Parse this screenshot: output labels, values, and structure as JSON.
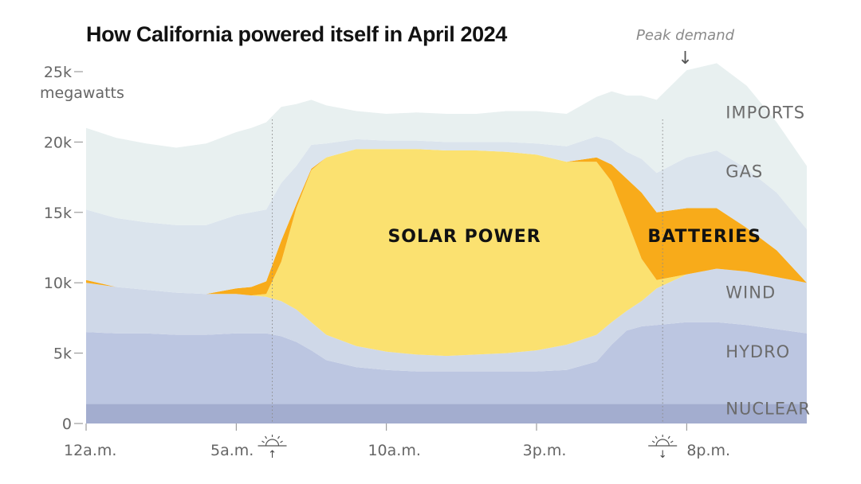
{
  "chart_data": {
    "type": "area",
    "title": "How California powered itself in April 2024",
    "ylabel": "megawatts",
    "ylim": [
      0,
      25000
    ],
    "yticks": [
      {
        "value": 0,
        "label": "0"
      },
      {
        "value": 5000,
        "label": "5k"
      },
      {
        "value": 10000,
        "label": "10k"
      },
      {
        "value": 15000,
        "label": "15k"
      },
      {
        "value": 20000,
        "label": "20k"
      },
      {
        "value": 25000,
        "label": "25k"
      }
    ],
    "xlim": [
      0,
      24
    ],
    "xticks": [
      {
        "value": 0,
        "label": "12a.m."
      },
      {
        "value": 5,
        "label": "5a.m."
      },
      {
        "value": 10,
        "label": "10a.m."
      },
      {
        "value": 15,
        "label": "3p.m."
      },
      {
        "value": 20,
        "label": "8p.m."
      }
    ],
    "x": [
      0,
      1,
      2,
      3,
      4,
      5,
      5.5,
      6,
      6.5,
      7,
      7.5,
      8,
      9,
      10,
      11,
      12,
      13,
      14,
      15,
      16,
      17,
      17.5,
      18,
      18.5,
      19,
      20,
      21,
      22,
      23,
      24
    ],
    "stack_order": [
      "nuclear",
      "hydro",
      "wind",
      "solar",
      "batteries",
      "gas",
      "imports"
    ],
    "series": [
      {
        "key": "nuclear",
        "name": "NUCLEAR",
        "color": "#a3adcf",
        "values": [
          1400,
          1400,
          1400,
          1400,
          1400,
          1400,
          1400,
          1400,
          1400,
          1400,
          1400,
          1400,
          1400,
          1400,
          1400,
          1400,
          1400,
          1400,
          1400,
          1400,
          1400,
          1400,
          1400,
          1400,
          1400,
          1400,
          1400,
          1400,
          1400,
          1400
        ]
      },
      {
        "key": "hydro",
        "name": "HYDRO",
        "color": "#bcc6e1",
        "values": [
          5100,
          5000,
          5000,
          4900,
          4900,
          5000,
          5000,
          5000,
          4800,
          4400,
          3800,
          3100,
          2600,
          2400,
          2300,
          2300,
          2300,
          2300,
          2300,
          2400,
          3000,
          4200,
          5200,
          5500,
          5600,
          5800,
          5800,
          5600,
          5300,
          5000
        ]
      },
      {
        "key": "wind",
        "name": "WIND",
        "color": "#cfd8e8",
        "values": [
          3500,
          3300,
          3100,
          3000,
          2900,
          2800,
          2700,
          2600,
          2500,
          2300,
          2000,
          1800,
          1500,
          1300,
          1200,
          1100,
          1200,
          1300,
          1500,
          1800,
          1900,
          1600,
          1400,
          1800,
          2600,
          3400,
          3800,
          3800,
          3700,
          3600
        ]
      },
      {
        "key": "solar",
        "name": "SOLAR POWER",
        "color": "#fbe170",
        "values": [
          0,
          0,
          0,
          0,
          0,
          0,
          0,
          200,
          2800,
          7200,
          10800,
          12600,
          14000,
          14400,
          14600,
          14600,
          14500,
          14300,
          13900,
          13000,
          12300,
          10000,
          6500,
          3000,
          600,
          0,
          0,
          0,
          0,
          0
        ]
      },
      {
        "key": "batteries",
        "name": "BATTERIES",
        "color": "#f8ab1a",
        "values": [
          200,
          0,
          0,
          0,
          0,
          400,
          600,
          900,
          1500,
          300,
          100,
          0,
          0,
          0,
          0,
          0,
          0,
          0,
          0,
          0,
          300,
          1200,
          2900,
          4700,
          4800,
          4700,
          4300,
          3100,
          1900,
          0
        ]
      },
      {
        "key": "gas",
        "name": "GAS",
        "color": "#dbe4ed",
        "values": [
          5000,
          4900,
          4800,
          4800,
          4900,
          5200,
          5300,
          5100,
          4100,
          2700,
          1700,
          1000,
          700,
          600,
          600,
          600,
          600,
          700,
          800,
          1100,
          1500,
          1700,
          1900,
          2400,
          2800,
          3600,
          4100,
          4200,
          4100,
          3800
        ]
      },
      {
        "key": "imports",
        "name": "IMPORTS",
        "color": "#e8f0f0",
        "values": [
          5800,
          5700,
          5600,
          5500,
          5800,
          5900,
          6000,
          6200,
          5400,
          4400,
          3200,
          2700,
          2000,
          1900,
          2000,
          2000,
          2000,
          2200,
          2300,
          2300,
          2800,
          3500,
          4000,
          4500,
          5200,
          6200,
          6200,
          5900,
          5000,
          4500
        ]
      }
    ],
    "annotations": {
      "peak_demand": {
        "text": "Peak demand",
        "arrow": "↓",
        "x": 19.9
      },
      "sunrise": {
        "x": 6.2,
        "arrow": "↑"
      },
      "sunset": {
        "x": 19.2,
        "arrow": "↓"
      }
    }
  }
}
